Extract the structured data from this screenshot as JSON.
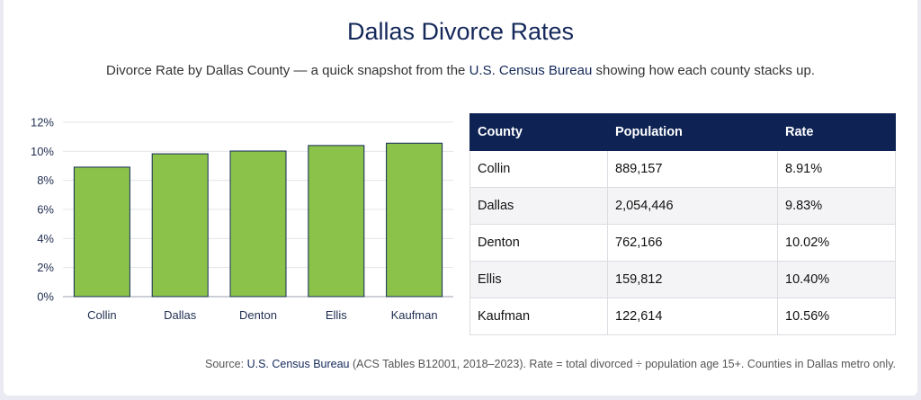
{
  "title": "Dallas Divorce Rates",
  "subtitle": {
    "before": "Divorce Rate by Dallas County — a quick snapshot from the ",
    "link": "U.S. Census Bureau",
    "after": " showing how each county stacks up."
  },
  "table": {
    "headers": [
      "County",
      "Population",
      "Rate"
    ],
    "rows": [
      [
        "Collin",
        "889,157",
        "8.91%"
      ],
      [
        "Dallas",
        "2,054,446",
        "9.83%"
      ],
      [
        "Denton",
        "762,166",
        "10.02%"
      ],
      [
        "Ellis",
        "159,812",
        "10.40%"
      ],
      [
        "Kaufman",
        "122,614",
        "10.56%"
      ]
    ]
  },
  "source": {
    "before": "Source: ",
    "link": "U.S. Census Bureau",
    "after": " (ACS Tables B12001, 2018–2023). Rate = total divorced ÷ population age 15+. Counties in Dallas metro only."
  },
  "colors": {
    "bar_fill": "#8bc34a",
    "bar_stroke": "#14285a",
    "header_bg": "#0e2354",
    "title": "#14285a"
  },
  "chart_data": {
    "type": "bar",
    "title": "",
    "xlabel": "",
    "ylabel": "",
    "categories": [
      "Collin",
      "Dallas",
      "Denton",
      "Ellis",
      "Kaufman"
    ],
    "values": [
      8.91,
      9.83,
      10.02,
      10.4,
      10.56
    ],
    "ylim": [
      0,
      12
    ],
    "yticks": [
      0,
      2,
      4,
      6,
      8,
      10,
      12
    ],
    "ytick_labels": [
      "0%",
      "2%",
      "4%",
      "6%",
      "8%",
      "10%",
      "12%"
    ],
    "grid": true,
    "legend": "none"
  }
}
